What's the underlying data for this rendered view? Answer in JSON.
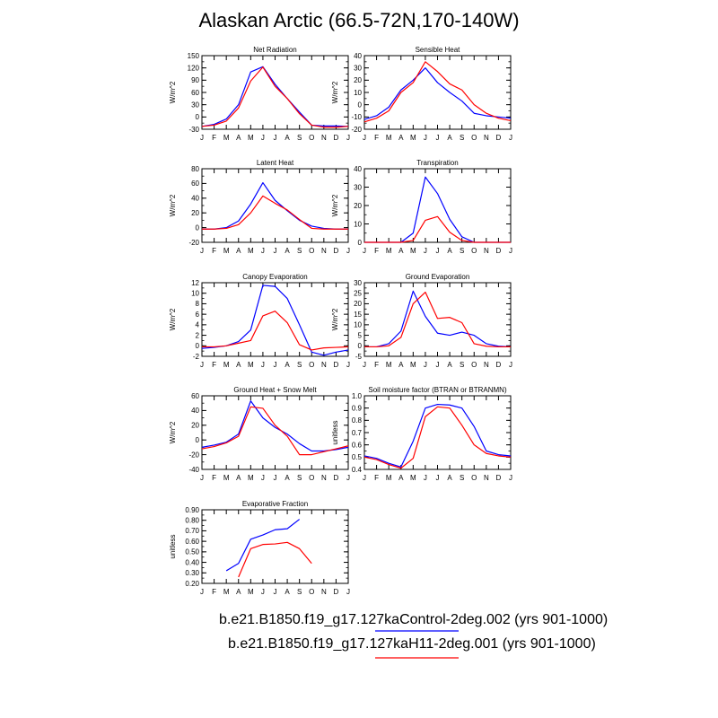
{
  "page": {
    "title": "Alaskan Arctic (66.5-72N,170-140W)"
  },
  "colors": {
    "control": "#0000ff",
    "h11": "#ff0000",
    "axis": "#000000"
  },
  "legend": {
    "items": [
      {
        "label": "b.e21.B1850.f19_g17.127kaControl-2deg.002 (yrs 901-1000)",
        "color": "#0000ff"
      },
      {
        "label": "b.e21.B1850.f19_g17.127kaH11-2deg.001 (yrs 901-1000)",
        "color": "#ff0000"
      }
    ]
  },
  "chart_data": [
    {
      "type": "line",
      "title": "Net Radiation",
      "ylabel": "W/m^2",
      "categories": [
        "J",
        "F",
        "M",
        "A",
        "M",
        "J",
        "J",
        "A",
        "S",
        "O",
        "N",
        "D",
        "J"
      ],
      "ylim": [
        -30,
        150
      ],
      "yticks": [
        "-30",
        "0",
        "30",
        "60",
        "90",
        "120",
        "150"
      ],
      "ytick_values": [
        -30,
        0,
        30,
        60,
        90,
        120,
        150
      ],
      "minor_step": 15,
      "series": [
        {
          "color": "#0000ff",
          "values": [
            -23,
            -18,
            -5,
            30,
            110,
            123,
            80,
            45,
            12,
            -20,
            -22,
            -22,
            -23
          ]
        },
        {
          "color": "#ff0000",
          "values": [
            -23,
            -20,
            -10,
            22,
            88,
            122,
            75,
            45,
            8,
            -20,
            -25,
            -25,
            -23
          ]
        }
      ]
    },
    {
      "type": "line",
      "title": "Sensible Heat",
      "ylabel": "W/m^2",
      "categories": [
        "J",
        "F",
        "M",
        "A",
        "M",
        "J",
        "J",
        "A",
        "S",
        "O",
        "N",
        "D",
        "J"
      ],
      "ylim": [
        -20,
        40
      ],
      "yticks": [
        "-20",
        "-10",
        "0",
        "10",
        "20",
        "30",
        "40"
      ],
      "ytick_values": [
        -20,
        -10,
        0,
        10,
        20,
        30,
        40
      ],
      "minor_step": 5,
      "series": [
        {
          "color": "#0000ff",
          "values": [
            -12,
            -9,
            -2,
            12,
            20,
            30,
            18,
            10,
            3,
            -7,
            -9,
            -10,
            -11
          ]
        },
        {
          "color": "#ff0000",
          "values": [
            -14,
            -11,
            -5,
            10,
            18,
            35,
            27,
            17,
            12,
            0,
            -7,
            -11,
            -13
          ]
        }
      ]
    },
    {
      "type": "line",
      "title": "Latent Heat",
      "ylabel": "W/m^2",
      "categories": [
        "J",
        "F",
        "M",
        "A",
        "M",
        "J",
        "J",
        "A",
        "S",
        "O",
        "N",
        "D",
        "J"
      ],
      "ylim": [
        -20,
        80
      ],
      "yticks": [
        "-20",
        "0",
        "20",
        "40",
        "60",
        "80"
      ],
      "ytick_values": [
        -20,
        0,
        20,
        40,
        60,
        80
      ],
      "minor_step": 10,
      "series": [
        {
          "color": "#0000ff",
          "values": [
            -2,
            -2,
            0,
            9,
            32,
            61,
            37,
            23,
            10,
            2,
            -1,
            -2,
            -2
          ]
        },
        {
          "color": "#ff0000",
          "values": [
            -2,
            -2,
            -1,
            4,
            20,
            43,
            33,
            24,
            11,
            -1,
            -2,
            -2,
            -2
          ]
        }
      ]
    },
    {
      "type": "line",
      "title": "Transpiration",
      "ylabel": "W/m^2",
      "categories": [
        "J",
        "F",
        "M",
        "A",
        "M",
        "J",
        "J",
        "A",
        "S",
        "O",
        "N",
        "D",
        "J"
      ],
      "ylim": [
        0,
        40
      ],
      "yticks": [
        "0",
        "10",
        "20",
        "30",
        "40"
      ],
      "ytick_values": [
        0,
        10,
        20,
        30,
        40
      ],
      "minor_step": 5,
      "series": [
        {
          "color": "#0000ff",
          "values": [
            0,
            0,
            0,
            0,
            5,
            35.5,
            26.5,
            12.5,
            3,
            0,
            0,
            0,
            0
          ]
        },
        {
          "color": "#ff0000",
          "values": [
            0,
            0,
            0,
            0,
            1,
            12,
            14,
            5.5,
            1,
            0,
            0,
            0,
            0
          ]
        }
      ]
    },
    {
      "type": "line",
      "title": "Canopy Evaporation",
      "ylabel": "W/m^2",
      "categories": [
        "J",
        "F",
        "M",
        "A",
        "M",
        "J",
        "J",
        "A",
        "S",
        "O",
        "N",
        "D",
        "J"
      ],
      "ylim": [
        -2,
        12
      ],
      "yticks": [
        "-2",
        "0",
        "2",
        "4",
        "6",
        "8",
        "10",
        "12"
      ],
      "ytick_values": [
        -2,
        0,
        2,
        4,
        6,
        8,
        10,
        12
      ],
      "minor_step": 1,
      "series": [
        {
          "color": "#0000ff",
          "values": [
            -0.5,
            -0.3,
            0,
            0.8,
            3,
            11.5,
            11.3,
            9,
            4,
            -1.2,
            -1.8,
            -1.2,
            -0.8
          ]
        },
        {
          "color": "#ff0000",
          "values": [
            -0.2,
            -0.2,
            0,
            0.5,
            1,
            5.7,
            6.6,
            4.4,
            0.2,
            -0.8,
            -0.4,
            -0.3,
            -0.2
          ]
        }
      ]
    },
    {
      "type": "line",
      "title": "Ground Evaporation",
      "ylabel": "W/m^2",
      "categories": [
        "J",
        "F",
        "M",
        "A",
        "M",
        "J",
        "J",
        "A",
        "S",
        "O",
        "N",
        "D",
        "J"
      ],
      "ylim": [
        -5,
        30
      ],
      "yticks": [
        "-5",
        "0",
        "5",
        "10",
        "15",
        "20",
        "25",
        "30"
      ],
      "ytick_values": [
        -5,
        0,
        5,
        10,
        15,
        20,
        25,
        30
      ],
      "minor_step": 2.5,
      "series": [
        {
          "color": "#0000ff",
          "values": [
            -0.5,
            -0.5,
            1,
            7,
            26,
            14,
            6,
            5,
            6.5,
            5,
            1,
            -0.2,
            -0.5
          ]
        },
        {
          "color": "#ff0000",
          "values": [
            -0.5,
            -0.5,
            0,
            4,
            20,
            25.5,
            13,
            13.5,
            11,
            1,
            -0.2,
            -0.5,
            -0.5
          ]
        }
      ]
    },
    {
      "type": "line",
      "title": "Ground Heat + Snow Melt",
      "ylabel": "W/m^2",
      "categories": [
        "J",
        "F",
        "M",
        "A",
        "M",
        "J",
        "J",
        "A",
        "S",
        "O",
        "N",
        "D",
        "J"
      ],
      "ylim": [
        -40,
        60
      ],
      "yticks": [
        "-40",
        "-20",
        "0",
        "20",
        "40",
        "60"
      ],
      "ytick_values": [
        -40,
        -20,
        0,
        20,
        40,
        60
      ],
      "minor_step": 10,
      "series": [
        {
          "color": "#0000ff",
          "values": [
            -10,
            -7,
            -3,
            8,
            53,
            30,
            17,
            8,
            -5,
            -15,
            -15,
            -13,
            -10
          ]
        },
        {
          "color": "#ff0000",
          "values": [
            -12,
            -9,
            -4,
            5,
            45,
            43,
            20,
            5,
            -20,
            -20,
            -16,
            -12,
            -8
          ]
        }
      ]
    },
    {
      "type": "line",
      "title": "Soil moisture factor (BTRAN or BTRANMN)",
      "ylabel": "unitless",
      "categories": [
        "J",
        "F",
        "M",
        "A",
        "M",
        "J",
        "J",
        "A",
        "S",
        "O",
        "N",
        "D",
        "J"
      ],
      "ylim": [
        0.4,
        1.0
      ],
      "yticks": [
        "0.4",
        "0.5",
        "0.6",
        "0.7",
        "0.8",
        "0.9",
        "1.0"
      ],
      "ytick_values": [
        0.4,
        0.5,
        0.6,
        0.7,
        0.8,
        0.9,
        1.0
      ],
      "minor_step": 0.05,
      "series": [
        {
          "color": "#0000ff",
          "values": [
            0.51,
            0.49,
            0.45,
            0.42,
            0.63,
            0.9,
            0.93,
            0.925,
            0.9,
            0.75,
            0.55,
            0.52,
            0.51
          ]
        },
        {
          "color": "#ff0000",
          "values": [
            0.5,
            0.48,
            0.44,
            0.41,
            0.49,
            0.83,
            0.91,
            0.9,
            0.76,
            0.6,
            0.53,
            0.51,
            0.5
          ]
        }
      ]
    },
    {
      "type": "line",
      "title": "Evaporative Fraction",
      "ylabel": "unitless",
      "categories": [
        "J",
        "F",
        "M",
        "A",
        "M",
        "J",
        "J",
        "A",
        "S",
        "O",
        "N",
        "D",
        "J"
      ],
      "ylim": [
        0.2,
        0.9
      ],
      "yticks": [
        "0.20",
        "0.30",
        "0.40",
        "0.50",
        "0.60",
        "0.70",
        "0.80",
        "0.90"
      ],
      "ytick_values": [
        0.2,
        0.3,
        0.4,
        0.5,
        0.6,
        0.7,
        0.8,
        0.9
      ],
      "minor_step": 0.05,
      "series": [
        {
          "color": "#0000ff",
          "values": [
            null,
            null,
            0.32,
            0.39,
            0.62,
            0.66,
            0.71,
            0.72,
            0.81,
            null,
            null,
            null,
            null
          ]
        },
        {
          "color": "#ff0000",
          "values": [
            null,
            null,
            null,
            0.26,
            0.53,
            0.57,
            0.575,
            0.59,
            0.53,
            0.39,
            null,
            null,
            null
          ]
        }
      ]
    }
  ]
}
